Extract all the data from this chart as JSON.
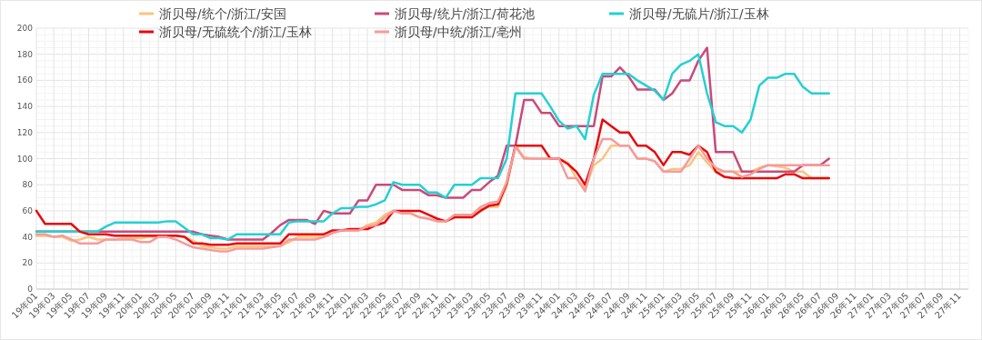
{
  "chart_data": {
    "type": "line",
    "legend": "top",
    "grid": true,
    "line_style": "solid",
    "marker": "none",
    "ylim": [
      0,
      200
    ],
    "yticks": [
      0,
      20,
      40,
      60,
      80,
      100,
      120,
      140,
      160,
      180,
      200
    ],
    "categories": [
      "19年01",
      null,
      "19年03",
      null,
      "19年05",
      null,
      "19年07",
      null,
      "19年09",
      null,
      "19年11",
      null,
      "20年01",
      null,
      "20年03",
      null,
      "20年05",
      null,
      "20年07",
      null,
      "20年09",
      null,
      "20年11",
      null,
      "21年01",
      null,
      "21年03",
      null,
      "21年05",
      null,
      "21年07",
      null,
      "21年09",
      null,
      "21年11",
      null,
      "22年01",
      null,
      "22年03",
      null,
      "22年05",
      null,
      "22年07",
      null,
      "22年09",
      null,
      "22年11",
      null,
      "23年01",
      null,
      "23年03",
      null,
      "23年05",
      null,
      "23年07",
      null,
      "23年09",
      null,
      "23年11",
      null,
      "24年01",
      null,
      "24年03",
      null,
      "24年05",
      null,
      "24年07",
      null,
      "24年09",
      null,
      "24年11",
      null,
      "25年01",
      null,
      "25年03",
      null,
      "25年05",
      null,
      "25年07",
      null,
      "25年09",
      null,
      "25年11",
      null,
      "26年01",
      null,
      "26年03",
      null,
      "26年05",
      null,
      "26年07",
      null,
      "26年09",
      null,
      "26年11",
      null,
      "27年01",
      null,
      "27年03",
      null,
      "27年05",
      null,
      "27年07",
      null,
      "27年09",
      null,
      "27年11",
      null
    ],
    "series": [
      {
        "name": "浙贝母/统个/浙江/安国",
        "color": "#fbc47e",
        "values": [
          41,
          41,
          40,
          40,
          37,
          38,
          40,
          38,
          38,
          38,
          39,
          39,
          39,
          40,
          40,
          40,
          41,
          40,
          37,
          33,
          32,
          31,
          31,
          33,
          33,
          33,
          33,
          33,
          33,
          36,
          40,
          40,
          40,
          40,
          43,
          45,
          45,
          45,
          49,
          51,
          57,
          60,
          58,
          58,
          55,
          54,
          52,
          52,
          56,
          56,
          56,
          61,
          63,
          63,
          79,
          110,
          101,
          100,
          100,
          100,
          100,
          97,
          85,
          77,
          95,
          100,
          110,
          110,
          110,
          100,
          100,
          98,
          90,
          92,
          92,
          95,
          105,
          97,
          90,
          90,
          90,
          90,
          90,
          93,
          95,
          94,
          93,
          90,
          90,
          85,
          85,
          85,
          null,
          null,
          null,
          null,
          null,
          null,
          null,
          null,
          null,
          null,
          null,
          null,
          null,
          null,
          null,
          null
        ]
      },
      {
        "name": "浙贝母/统片/浙江/荷花池",
        "color": "#c94a7b",
        "values": [
          44,
          44,
          44,
          44,
          44,
          44,
          44,
          44,
          44,
          44,
          44,
          44,
          44,
          44,
          44,
          44,
          44,
          44,
          44,
          42,
          41,
          40,
          38,
          38,
          38,
          38,
          38,
          43,
          49,
          53,
          53,
          53,
          50,
          60,
          58,
          58,
          58,
          68,
          68,
          80,
          80,
          80,
          76,
          76,
          76,
          72,
          72,
          70,
          70,
          70,
          76,
          76,
          82,
          87,
          110,
          110,
          145,
          145,
          135,
          135,
          125,
          125,
          125,
          125,
          125,
          163,
          163,
          170,
          163,
          153,
          153,
          153,
          145,
          150,
          160,
          160,
          175,
          185,
          105,
          105,
          105,
          90,
          90,
          90,
          90,
          90,
          90,
          90,
          95,
          95,
          95,
          100,
          null,
          null,
          null,
          null,
          null,
          null,
          null,
          null,
          null,
          null,
          null,
          null,
          null,
          null,
          null,
          null
        ]
      },
      {
        "name": "浙贝母/无硫片/浙江/玉林",
        "color": "#25d0d2",
        "values": [
          44,
          44,
          44,
          44,
          44,
          44,
          44,
          44,
          48,
          51,
          51,
          51,
          51,
          51,
          51,
          52,
          52,
          47,
          42,
          42,
          39,
          39,
          38,
          42,
          42,
          42,
          42,
          42,
          42,
          51,
          52,
          52,
          52,
          52,
          58,
          62,
          62,
          63,
          63,
          65,
          68,
          82,
          80,
          80,
          80,
          74,
          74,
          70,
          80,
          80,
          80,
          85,
          85,
          85,
          100,
          150,
          150,
          150,
          150,
          140,
          129,
          123,
          125,
          115,
          149,
          165,
          165,
          165,
          165,
          160,
          156,
          152,
          145,
          165,
          172,
          175,
          180,
          150,
          128,
          125,
          125,
          120,
          130,
          156,
          162,
          162,
          165,
          165,
          155,
          150,
          150,
          150,
          null,
          null,
          null,
          null,
          null,
          null,
          null,
          null,
          null,
          null,
          null,
          null,
          null,
          null,
          null,
          null
        ]
      },
      {
        "name": "浙贝母/无硫统个/浙江/玉林",
        "color": "#e8070b",
        "values": [
          60,
          50,
          50,
          50,
          50,
          44,
          42,
          42,
          42,
          41,
          41,
          41,
          41,
          41,
          41,
          41,
          41,
          40,
          35,
          35,
          34,
          34,
          34,
          35,
          35,
          35,
          35,
          35,
          35,
          42,
          42,
          42,
          42,
          42,
          45,
          45,
          46,
          46,
          46,
          49,
          51,
          60,
          60,
          60,
          60,
          57,
          54,
          52,
          55,
          55,
          55,
          60,
          64,
          65,
          81,
          110,
          110,
          110,
          110,
          100,
          100,
          96,
          90,
          80,
          100,
          130,
          125,
          120,
          120,
          110,
          110,
          105,
          95,
          105,
          105,
          103,
          110,
          105,
          90,
          86,
          85,
          85,
          85,
          85,
          85,
          85,
          88,
          88,
          85,
          85,
          85,
          85,
          null,
          null,
          null,
          null,
          null,
          null,
          null,
          null,
          null,
          null,
          null,
          null,
          null,
          null,
          null,
          null
        ]
      },
      {
        "name": "浙贝母/中统/浙江/亳州",
        "color": "#f59b9b",
        "values": [
          42,
          42,
          40,
          41,
          38,
          35,
          35,
          35,
          38,
          38,
          38,
          38,
          36,
          36,
          40,
          40,
          38,
          35,
          32,
          31,
          30,
          29,
          29,
          31,
          31,
          31,
          31,
          32,
          33,
          38,
          38,
          38,
          38,
          40,
          43,
          45,
          45,
          45,
          48,
          49,
          55,
          60,
          58,
          58,
          55,
          54,
          52,
          52,
          57,
          57,
          57,
          63,
          66,
          67,
          82,
          109,
          100,
          100,
          100,
          100,
          100,
          85,
          85,
          75,
          100,
          115,
          115,
          110,
          110,
          100,
          100,
          98,
          90,
          90,
          90,
          100,
          110,
          100,
          93,
          90,
          90,
          86,
          88,
          92,
          95,
          95,
          95,
          95,
          95,
          95,
          95,
          95,
          null,
          null,
          null,
          null,
          null,
          null,
          null,
          null,
          null,
          null,
          null,
          null,
          null,
          null,
          null,
          null
        ]
      }
    ]
  }
}
